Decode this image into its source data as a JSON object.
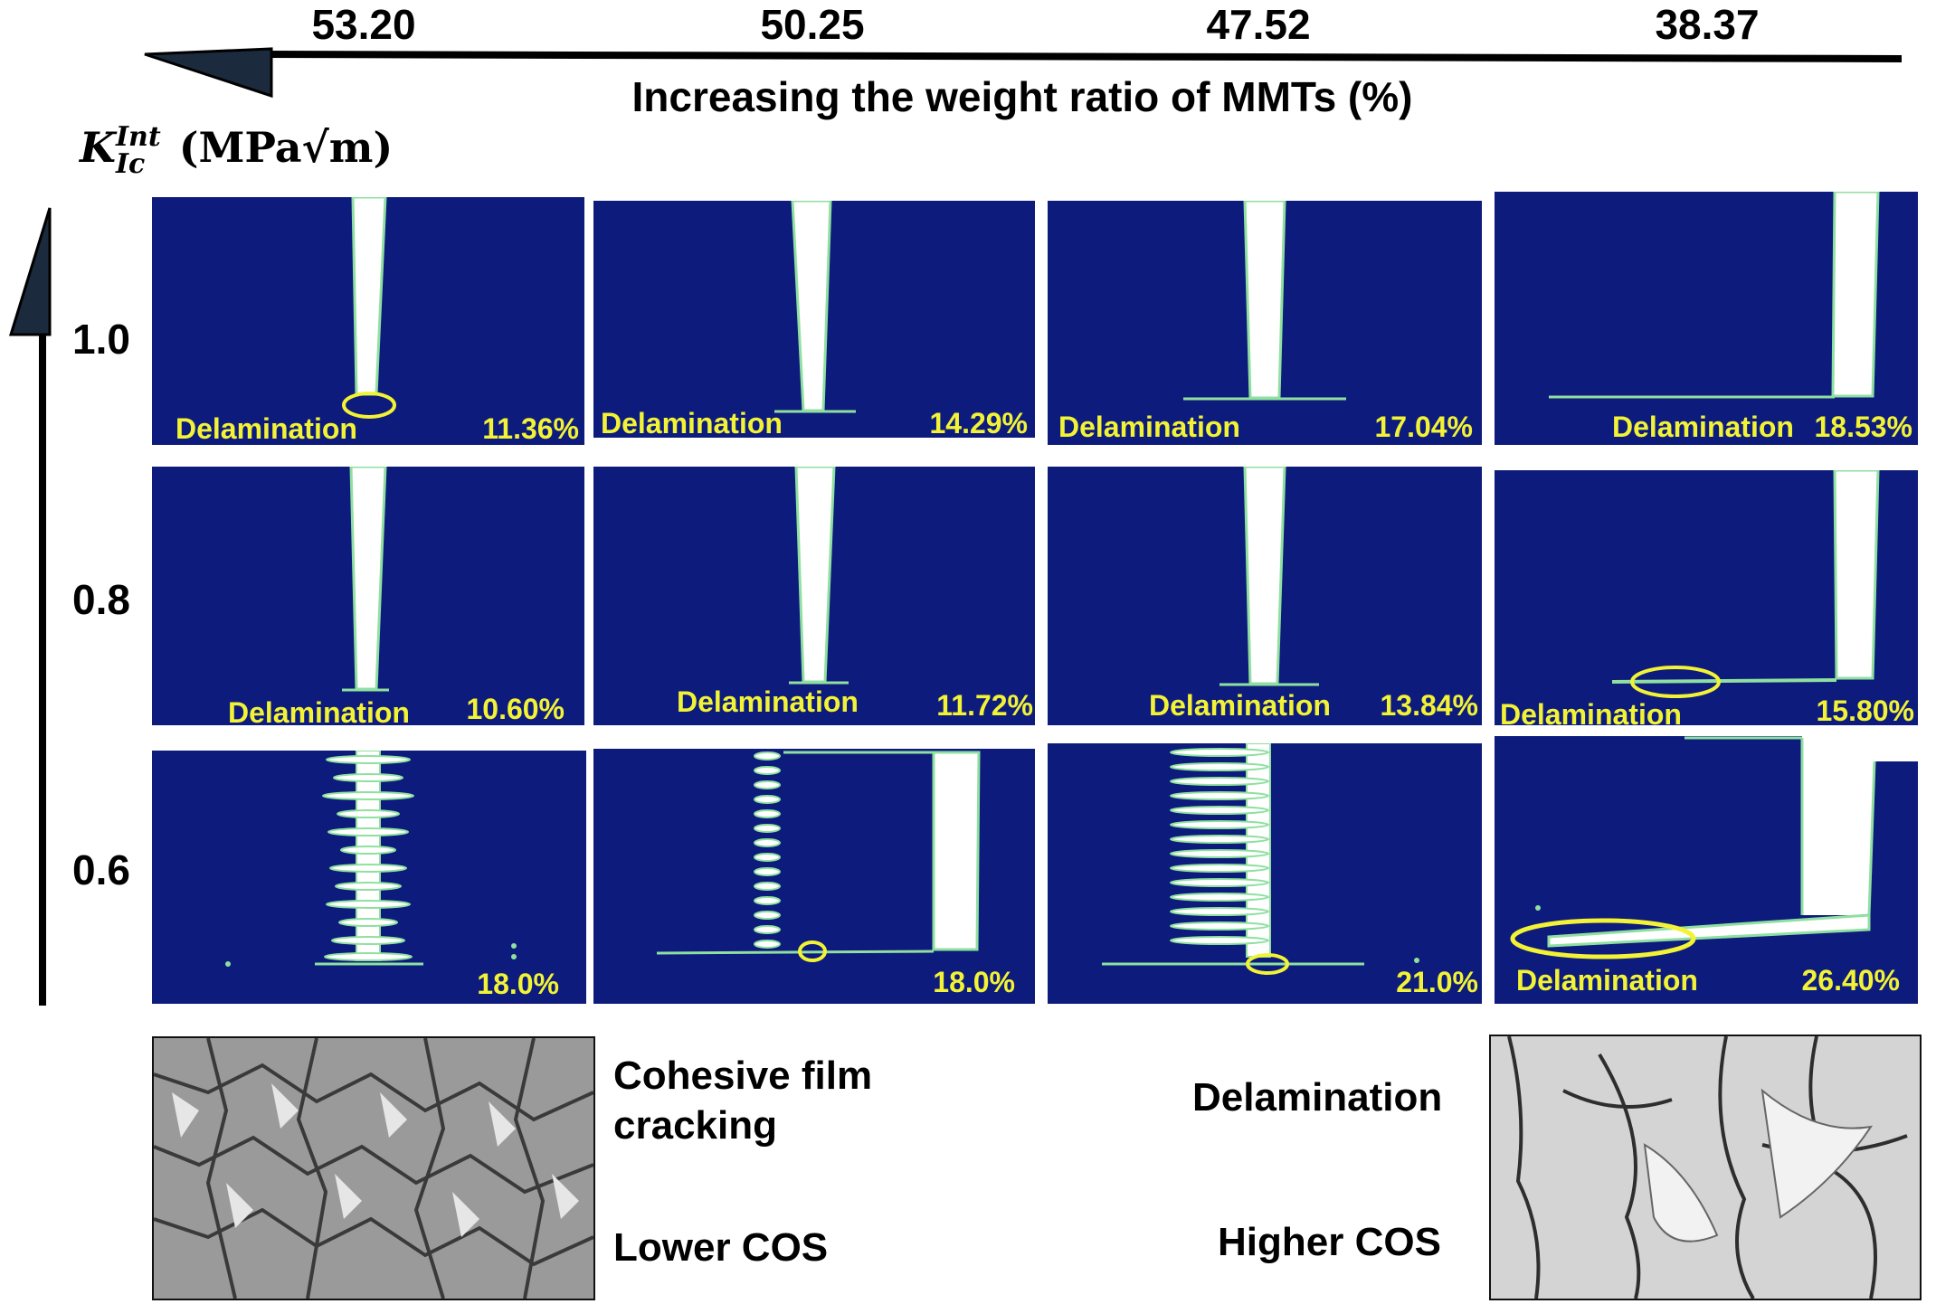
{
  "top_axis": {
    "values": [
      "53.20",
      "50.25",
      "47.52",
      "38.37"
    ],
    "title": "Increasing the weight ratio of MMTs (%)"
  },
  "left_axis": {
    "symbol": "K",
    "superscript": "Int",
    "subscript": "Ic",
    "unit": "(MPa√m)",
    "values": [
      "1.0",
      "0.8",
      "0.6"
    ]
  },
  "grid": {
    "rows": [
      {
        "kic": "1.0",
        "panels": [
          {
            "label": "Delamination",
            "percent": "11.36%"
          },
          {
            "label": "Delamination",
            "percent": "14.29%"
          },
          {
            "label": "Delamination",
            "percent": "17.04%"
          },
          {
            "label": "Delamination",
            "percent": "18.53%"
          }
        ]
      },
      {
        "kic": "0.8",
        "panels": [
          {
            "label": "Delamination",
            "percent": "10.60%"
          },
          {
            "label": "Delamination",
            "percent": "11.72%"
          },
          {
            "label": "Delamination",
            "percent": "13.84%"
          },
          {
            "label": "Delamination",
            "percent": "15.80%"
          }
        ]
      },
      {
        "kic": "0.6",
        "panels": [
          {
            "label": "",
            "percent": "18.0%"
          },
          {
            "label": "",
            "percent": "18.0%"
          },
          {
            "label": "",
            "percent": "21.0%"
          },
          {
            "label": "Delamination",
            "percent": "26.40%"
          }
        ]
      }
    ]
  },
  "bottom": {
    "left_text_1": "Cohesive film cracking",
    "left_text_1a": "Cohesive film",
    "left_text_1b": "cracking",
    "left_text_2": "Lower COS",
    "right_text_1": "Delamination",
    "right_text_2": "Higher COS"
  },
  "colors": {
    "panel_bg": "#0d1b7c",
    "crack": "#ffffff",
    "crack_edge": "#8fe0a0",
    "label": "#f3f335",
    "highlight": "#f3f335"
  }
}
